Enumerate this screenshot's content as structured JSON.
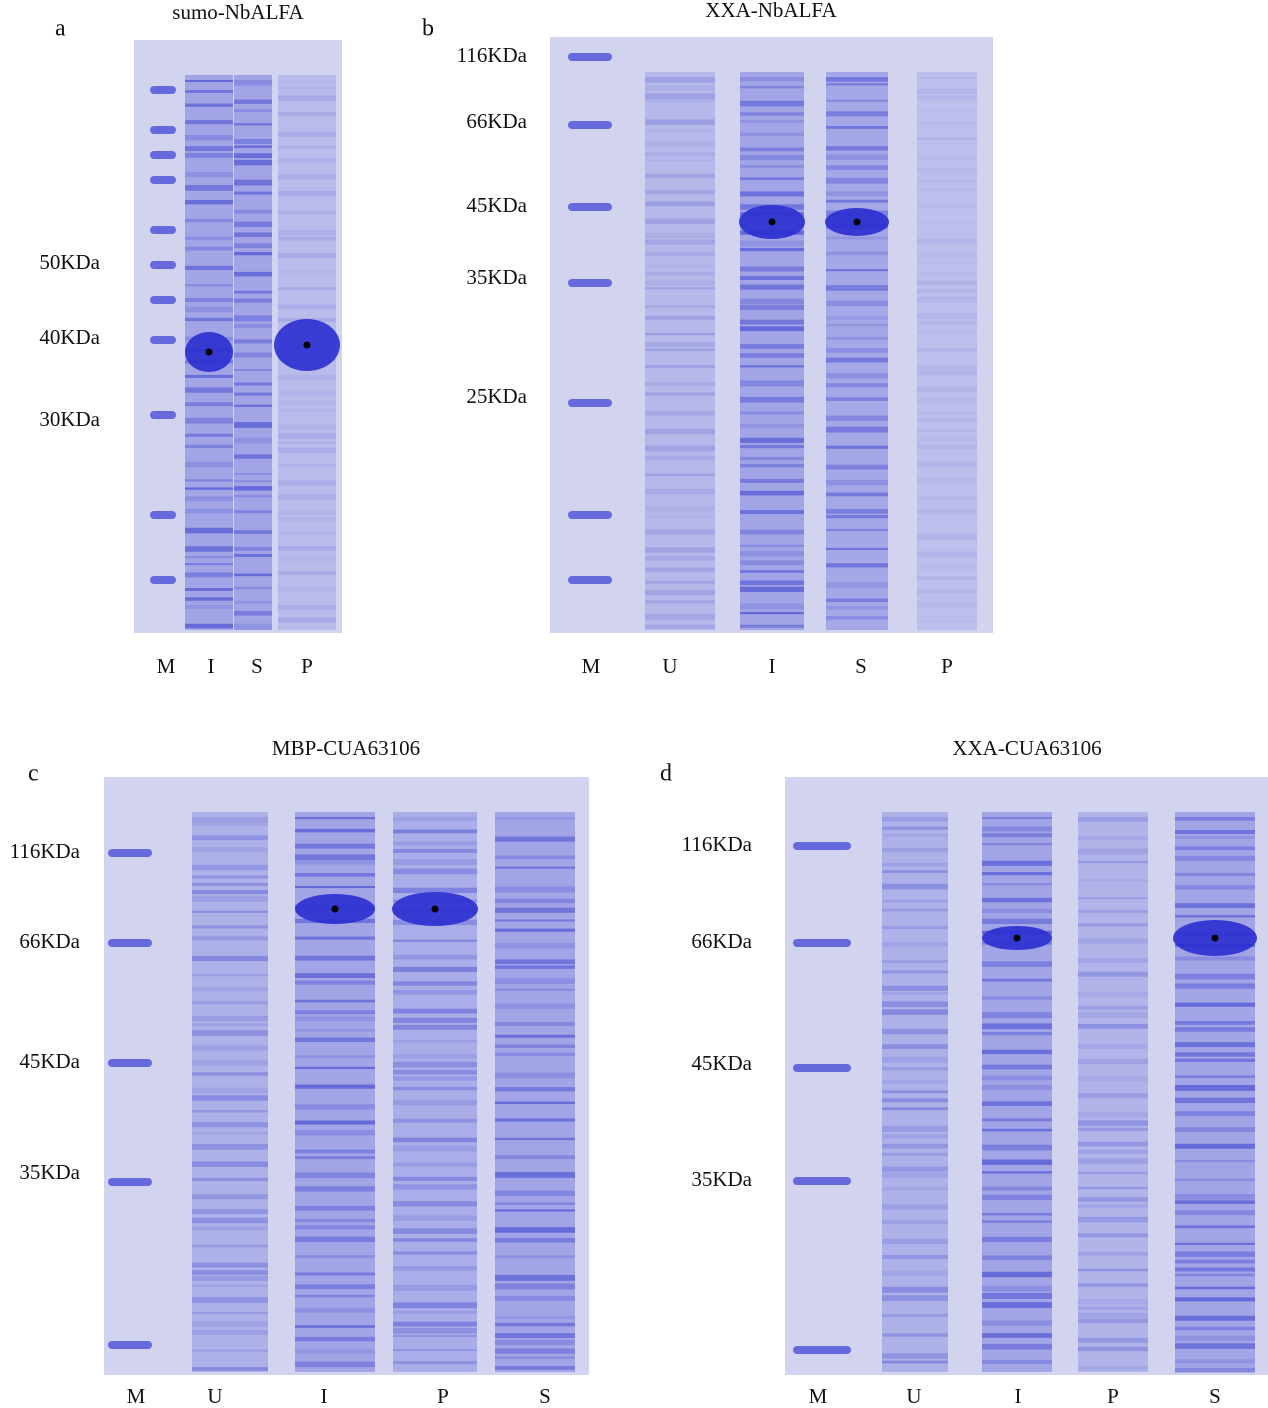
{
  "panels": [
    {
      "letter": "a",
      "title": "sumo-NbALFA",
      "markers": [
        "50KDa",
        "40KDa",
        "30KDa"
      ],
      "lanes": [
        "M",
        "I",
        "S",
        "P"
      ]
    },
    {
      "letter": "b",
      "title": "XXA-NbALFA",
      "markers": [
        "116KDa",
        "66KDa",
        "45KDa",
        "35KDa",
        "25KDa"
      ],
      "lanes": [
        "M",
        "U",
        "I",
        "S",
        "P"
      ]
    },
    {
      "letter": "c",
      "title": "MBP-CUA63106",
      "markers": [
        "116KDa",
        "66KDa",
        "45KDa",
        "35KDa"
      ],
      "lanes": [
        "M",
        "U",
        "I",
        "P",
        "S"
      ]
    },
    {
      "letter": "d",
      "title": "XXA-CUA63106",
      "markers": [
        "116KDa",
        "66KDa",
        "45KDa",
        "35KDa"
      ],
      "lanes": [
        "M",
        "U",
        "I",
        "P",
        "S"
      ]
    }
  ]
}
